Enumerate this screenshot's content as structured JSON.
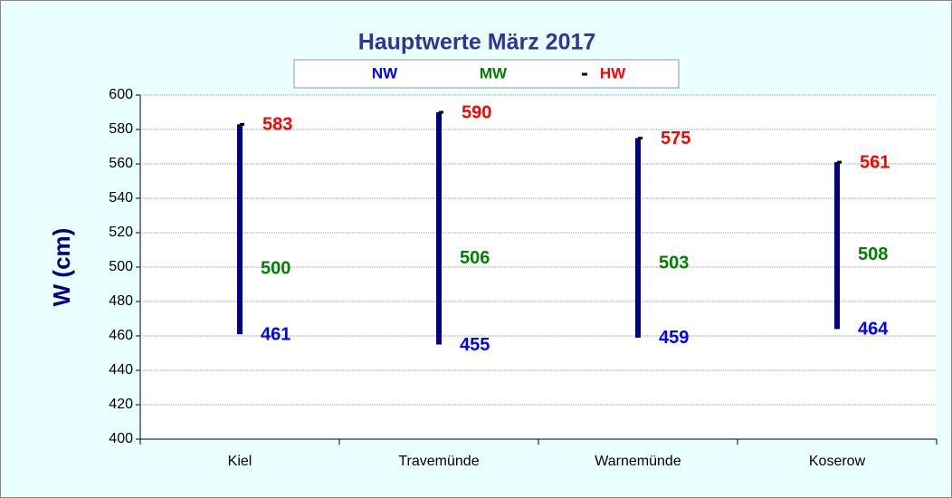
{
  "chart_data": {
    "type": "hilo",
    "title": "Hauptwerte März  2017",
    "y_label": "W (cm)",
    "categories": [
      "Kiel",
      "Travemünde",
      "Warnemünde",
      "Koserow"
    ],
    "series": [
      {
        "name": "NW",
        "color": "#0000ff",
        "values": [
          461,
          455,
          459,
          464
        ]
      },
      {
        "name": "MW",
        "color": "#008000",
        "values": [
          500,
          506,
          503,
          508
        ]
      },
      {
        "name": "HW",
        "color": "#ff0000",
        "values": [
          583,
          590,
          575,
          561
        ]
      }
    ],
    "bar_color": "#000080",
    "ylim": [
      400,
      600
    ],
    "yticks": [
      400,
      420,
      440,
      460,
      480,
      500,
      520,
      540,
      560,
      580,
      600
    ],
    "grid": true
  }
}
